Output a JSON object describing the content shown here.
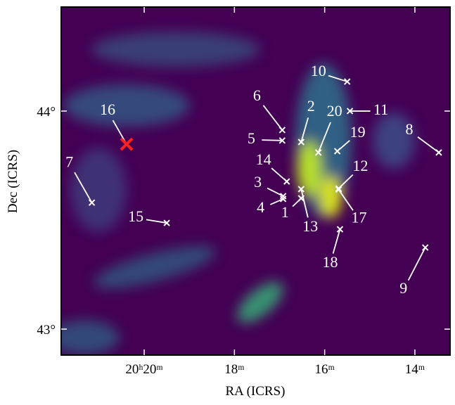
{
  "chart_data": {
    "type": "scatter",
    "xlabel": "RA (ICRS)",
    "ylabel": "Dec (ICRS)",
    "xlim": [
      21.84,
      13.22
    ],
    "xticks": [
      {
        "value": 20,
        "label": "20ʰ20ᵐ"
      },
      {
        "value": 18,
        "label": "18ᵐ"
      },
      {
        "value": 16,
        "label": "16ᵐ"
      },
      {
        "value": 14,
        "label": "14ᵐ"
      }
    ],
    "ylim": [
      42.881,
      44.477
    ],
    "yticks": [
      {
        "value": 43,
        "label": "43°"
      },
      {
        "value": 44,
        "label": "44°"
      }
    ],
    "points": [
      {
        "label": "10",
        "ra": 15.5,
        "dec": 44.135,
        "color": "#ffffff"
      },
      {
        "label": "11",
        "ra": 15.44,
        "dec": 44.0,
        "color": "#ffffff"
      },
      {
        "label": "6",
        "ra": 16.94,
        "dec": 43.913,
        "color": "#ffffff"
      },
      {
        "label": "5",
        "ra": 16.94,
        "dec": 43.865,
        "color": "#ffffff"
      },
      {
        "label": "2",
        "ra": 16.52,
        "dec": 43.858,
        "color": "#ffffff"
      },
      {
        "label": "20",
        "ra": 16.14,
        "dec": 43.81,
        "color": "#ffffff"
      },
      {
        "label": "19",
        "ra": 15.72,
        "dec": 43.816,
        "color": "#ffffff"
      },
      {
        "label": "8",
        "ra": 13.47,
        "dec": 43.81,
        "color": "#ffffff"
      },
      {
        "label": "16",
        "ra": 20.39,
        "dec": 43.848,
        "color": "#ff2020"
      },
      {
        "label": "14",
        "ra": 16.84,
        "dec": 43.677,
        "color": "#ffffff"
      },
      {
        "label": "12",
        "ra": 15.69,
        "dec": 43.645,
        "color": "#ffffff"
      },
      {
        "label": "3",
        "ra": 16.92,
        "dec": 43.61,
        "color": "#ffffff"
      },
      {
        "label": "4",
        "ra": 16.92,
        "dec": 43.597,
        "color": "#ffffff"
      },
      {
        "label": "1",
        "ra": 16.52,
        "dec": 43.6,
        "color": "#ffffff"
      },
      {
        "label": "13",
        "ra": 16.52,
        "dec": 43.642,
        "color": "#ffffff"
      },
      {
        "label": "17",
        "ra": 15.69,
        "dec": 43.64,
        "color": "#ffffff"
      },
      {
        "label": "18",
        "ra": 15.66,
        "dec": 43.458,
        "color": "#ffffff"
      },
      {
        "label": "9",
        "ra": 13.77,
        "dec": 43.374,
        "color": "#ffffff"
      },
      {
        "label": "7",
        "ra": 21.16,
        "dec": 43.58,
        "color": "#ffffff"
      },
      {
        "label": "15",
        "ra": 19.5,
        "dec": 43.487,
        "color": "#ffffff"
      }
    ]
  }
}
